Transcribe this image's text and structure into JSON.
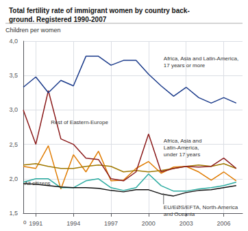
{
  "chart_data": {
    "type": "line",
    "title": "Total fertility rate of immigrant women by country back-\nground. Registered 1990-2007",
    "ylabel": "Children per women",
    "x": [
      1990,
      1991,
      1992,
      1993,
      1994,
      1995,
      1996,
      1997,
      1998,
      1999,
      2000,
      2001,
      2002,
      2003,
      2004,
      2005,
      2006,
      2007
    ],
    "series": [
      {
        "color": "#e07b00",
        "values": [
          2.18,
          2.15,
          2.48,
          1.85,
          2.35,
          2.1,
          2.4,
          1.97,
          1.98,
          2.15,
          2.25,
          2.08,
          2.17,
          2.18,
          2.1,
          1.98,
          2.1,
          1.97
        ]
      },
      {
        "color": "#2aaba0",
        "values": [
          1.95,
          2.0,
          2.0,
          1.87,
          1.87,
          1.97,
          2.0,
          1.87,
          1.83,
          1.87,
          2.07,
          1.9,
          1.82,
          1.82,
          1.85,
          1.87,
          1.9,
          1.95
        ]
      },
      {
        "color": "#111111",
        "values": [
          1.93,
          1.92,
          1.9,
          1.88,
          1.87,
          1.87,
          1.86,
          1.83,
          1.81,
          1.84,
          1.84,
          1.78,
          1.75,
          1.8,
          1.83,
          1.84,
          1.87,
          1.9
        ]
      },
      {
        "color": "#a07800",
        "values": [
          2.2,
          2.22,
          2.18,
          2.15,
          2.15,
          2.18,
          2.2,
          2.18,
          2.1,
          2.12,
          2.1,
          2.12,
          2.15,
          2.18,
          2.2,
          2.18,
          2.22,
          2.15
        ]
      },
      {
        "color": "#8b1a1a",
        "values": [
          3.0,
          2.5,
          3.28,
          2.58,
          2.5,
          2.3,
          2.28,
          2.0,
          1.97,
          2.1,
          2.65,
          2.1,
          2.15,
          2.18,
          2.17,
          2.18,
          2.3,
          2.15
        ]
      },
      {
        "color": "#1a3a8a",
        "values": [
          3.33,
          3.48,
          3.25,
          3.43,
          3.35,
          3.78,
          3.78,
          3.65,
          3.72,
          3.72,
          3.52,
          3.35,
          3.2,
          3.33,
          3.18,
          3.1,
          3.18,
          3.1
        ]
      }
    ],
    "xlim": [
      1990,
      2007.5
    ],
    "xticks": [
      1991,
      1994,
      1997,
      2000,
      2003,
      2006
    ],
    "ylim": [
      1.5,
      4.0
    ],
    "yticks": [
      {
        "value": 1.5,
        "label": "1,5"
      },
      {
        "value": 2.0,
        "label": "2,0"
      },
      {
        "value": 2.5,
        "label": "2,5"
      },
      {
        "value": 3.0,
        "label": "3,0"
      },
      {
        "value": 3.5,
        "label": "3,5"
      },
      {
        "value": 4.0,
        "label": "4,0"
      }
    ],
    "grid": true,
    "annotations": [
      {
        "text": "0",
        "x": 1990.0,
        "y": 1.42
      },
      {
        "text": "Africa, Asia and Latin-America,\n17 years or more",
        "x": 2001.2,
        "y": 3.8
      },
      {
        "text": "Rest of Eastern-Europe",
        "x": 1992.2,
        "y": 2.87
      },
      {
        "text": "All citizens",
        "x": 1990.1,
        "y": 1.98
      },
      {
        "text": "Africa, Asia and\nLatin-America,\nunder 17 years",
        "x": 2001.2,
        "y": 2.6
      },
      {
        "text": "EU/EØS/EFTA, North-America\nand Oceania",
        "x": 2001.2,
        "y": 1.63,
        "xy": [
          2001.2,
          1.81
        ]
      }
    ]
  }
}
